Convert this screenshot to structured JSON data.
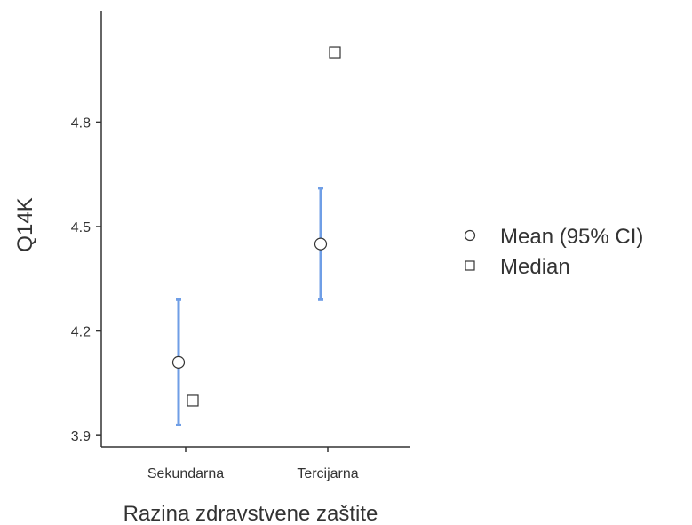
{
  "chart_data": {
    "type": "scatter",
    "title": "",
    "xlabel": "Razina zdravstvene zaštite",
    "ylabel": "Q14K",
    "categories": [
      "Sekundarna",
      "Tercijarna"
    ],
    "yticks": [
      3.9,
      4.2,
      4.5,
      4.8
    ],
    "ylim": [
      3.88,
      5.12
    ],
    "grid": false,
    "legend_position": "right",
    "series": [
      {
        "name": "Mean (95% CI)",
        "marker": "circle",
        "values": [
          4.11,
          4.45
        ],
        "ci_lower": [
          3.93,
          4.29
        ],
        "ci_upper": [
          4.29,
          4.61
        ]
      },
      {
        "name": "Median",
        "marker": "square",
        "values": [
          4.0,
          5.0
        ]
      }
    ],
    "colors": {
      "ci": "#6f9ee6",
      "marker_stroke": "#333333",
      "axis": "#333333"
    }
  }
}
